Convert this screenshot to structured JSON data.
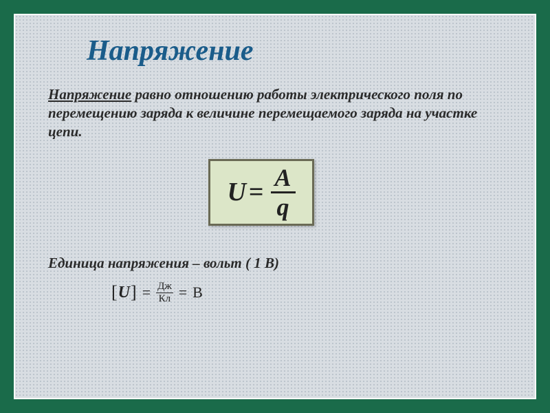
{
  "slide": {
    "title": "Напряжение",
    "definition_term": "Напряжение",
    "definition_rest": " равно отношению работы электрического поля по перемещению заряда к величине перемещаемого заряда на участке цепи.",
    "unit_line": "Единица напряжения – вольт  ( 1 В)"
  },
  "formula": {
    "lhs": "U",
    "eq": "=",
    "numerator": "A",
    "denominator": "q",
    "box_bg": "#dce6c8",
    "box_border": "#6a6a55"
  },
  "unit_eq": {
    "lbracket": "[",
    "var": "U",
    "rbracket": "]",
    "eq": "=",
    "frac_num": "Дж",
    "frac_den": "Кл",
    "rhs": "В"
  },
  "style": {
    "frame_color": "#1a6b4a",
    "title_color": "#1a5c8a",
    "text_color": "#2a2a2a",
    "title_fontsize": 42,
    "body_fontsize": 21,
    "formula_fontsize": 38
  }
}
